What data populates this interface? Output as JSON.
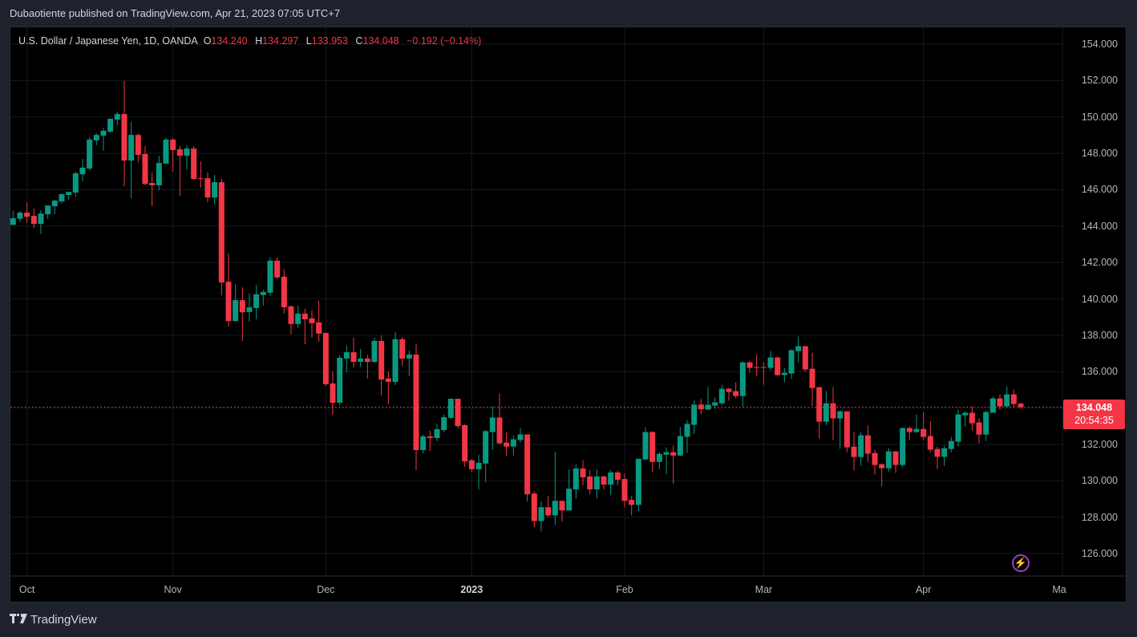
{
  "header": {
    "published": "Dubaotiente published on TradingView.com, Apr 21, 2023 07:05 UTC+7"
  },
  "legend": {
    "symbol": "U.S. Dollar / Japanese Yen, 1D, OANDA",
    "o_label": "O",
    "o": "134.240",
    "h_label": "H",
    "h": "134.297",
    "l_label": "L",
    "l": "133.953",
    "c_label": "C",
    "c": "134.048",
    "change": "−0.192 (−0.14%)"
  },
  "last_price": {
    "price": "134.048",
    "countdown": "20:54:35"
  },
  "footer": {
    "brand": "TradingView",
    "logo": "TV"
  },
  "colors": {
    "up": "#089981",
    "down": "#f23645"
  },
  "chart_data": {
    "type": "candlestick",
    "title": "U.S. Dollar / Japanese Yen, 1D, OANDA",
    "ylim": [
      125,
      155
    ],
    "y_ticks": [
      "154.000",
      "152.000",
      "150.000",
      "148.000",
      "146.000",
      "144.000",
      "142.000",
      "140.000",
      "138.000",
      "136.000",
      "134.000",
      "132.000",
      "130.000",
      "128.000",
      "126.000"
    ],
    "y_tick_values": [
      154,
      152,
      150,
      148,
      146,
      144,
      142,
      140,
      138,
      136,
      134,
      132,
      130,
      128,
      126
    ],
    "x_ticks": [
      {
        "label": "Oct",
        "bar": 2
      },
      {
        "label": "Nov",
        "bar": 23
      },
      {
        "label": "Dec",
        "bar": 45
      },
      {
        "label": "2023",
        "bar": 66,
        "bold": true
      },
      {
        "label": "Feb",
        "bar": 88
      },
      {
        "label": "Mar",
        "bar": 108
      },
      {
        "label": "Apr",
        "bar": 131
      },
      {
        "label": "Ma",
        "bar": 151
      }
    ],
    "ohlc": [
      [
        144.07,
        144.82,
        144.05,
        144.43
      ],
      [
        144.4,
        144.82,
        144.22,
        144.74
      ],
      [
        144.74,
        145.31,
        144.18,
        144.51
      ],
      [
        144.56,
        144.96,
        143.9,
        144.12
      ],
      [
        144.12,
        144.87,
        143.56,
        144.69
      ],
      [
        144.65,
        145.13,
        144.4,
        145.13
      ],
      [
        145.09,
        145.44,
        144.66,
        145.4
      ],
      [
        145.35,
        145.79,
        145.24,
        145.75
      ],
      [
        145.71,
        145.88,
        145.46,
        145.88
      ],
      [
        145.84,
        146.99,
        145.62,
        146.9
      ],
      [
        146.85,
        147.69,
        146.46,
        147.21
      ],
      [
        147.16,
        148.88,
        147.07,
        148.75
      ],
      [
        148.71,
        149.1,
        148.44,
        149.01
      ],
      [
        148.97,
        149.41,
        148.13,
        149.24
      ],
      [
        149.19,
        149.9,
        149.1,
        149.9
      ],
      [
        149.85,
        150.29,
        149.54,
        150.16
      ],
      [
        150.16,
        151.97,
        146.19,
        147.6
      ],
      [
        147.6,
        149.72,
        145.53,
        149.01
      ],
      [
        149.01,
        149.1,
        147.51,
        147.91
      ],
      [
        147.96,
        148.4,
        146.24,
        146.32
      ],
      [
        146.37,
        146.94,
        145.09,
        146.24
      ],
      [
        146.24,
        147.87,
        145.97,
        147.47
      ],
      [
        147.43,
        148.84,
        147.43,
        148.75
      ],
      [
        148.75,
        148.84,
        146.99,
        148.18
      ],
      [
        148.22,
        148.4,
        145.66,
        147.87
      ],
      [
        147.87,
        148.44,
        147.12,
        148.26
      ],
      [
        148.26,
        148.4,
        146.54,
        146.59
      ],
      [
        146.63,
        147.56,
        146.1,
        146.59
      ],
      [
        146.63,
        146.94,
        145.31,
        145.57
      ],
      [
        145.57,
        146.81,
        145.18,
        146.41
      ],
      [
        146.41,
        146.59,
        140.19,
        140.9
      ],
      [
        140.94,
        142.49,
        138.47,
        138.78
      ],
      [
        138.78,
        140.81,
        138.78,
        139.93
      ],
      [
        139.93,
        140.63,
        137.68,
        139.26
      ],
      [
        139.28,
        140.29,
        138.75,
        139.54
      ],
      [
        139.5,
        140.78,
        138.88,
        140.25
      ],
      [
        140.21,
        140.51,
        139.63,
        140.38
      ],
      [
        140.34,
        142.28,
        140.16,
        142.1
      ],
      [
        142.1,
        142.28,
        141.09,
        141.18
      ],
      [
        141.22,
        141.62,
        139.19,
        139.54
      ],
      [
        139.59,
        139.63,
        138.04,
        138.62
      ],
      [
        138.62,
        139.63,
        138.4,
        139.19
      ],
      [
        139.19,
        139.46,
        137.51,
        138.88
      ],
      [
        138.93,
        139.37,
        137.87,
        138.66
      ],
      [
        138.71,
        139.9,
        137.65,
        138.09
      ],
      [
        138.13,
        138.13,
        135.22,
        135.31
      ],
      [
        135.35,
        136.01,
        133.63,
        134.29
      ],
      [
        134.29,
        136.9,
        134.16,
        136.76
      ],
      [
        136.72,
        137.43,
        135.97,
        137.07
      ],
      [
        137.07,
        137.87,
        136.22,
        136.54
      ],
      [
        136.54,
        137.25,
        136.26,
        136.72
      ],
      [
        136.72,
        136.94,
        135.62,
        136.54
      ],
      [
        136.54,
        137.87,
        136.49,
        137.69
      ],
      [
        137.69,
        138.0,
        134.69,
        135.57
      ],
      [
        135.62,
        136.01,
        134.21,
        135.44
      ],
      [
        135.44,
        138.18,
        135.26,
        137.78
      ],
      [
        137.78,
        137.91,
        136.32,
        136.72
      ],
      [
        136.72,
        137.16,
        135.75,
        136.94
      ],
      [
        136.94,
        137.51,
        130.59,
        131.69
      ],
      [
        131.69,
        132.53,
        131.51,
        132.44
      ],
      [
        132.44,
        132.75,
        131.65,
        132.35
      ],
      [
        132.35,
        133.15,
        132.18,
        132.84
      ],
      [
        132.79,
        133.63,
        132.66,
        133.5
      ],
      [
        133.46,
        134.51,
        133.41,
        134.51
      ],
      [
        134.51,
        134.51,
        132.88,
        133.01
      ],
      [
        133.06,
        133.1,
        130.76,
        131.07
      ],
      [
        131.13,
        131.2,
        130.5,
        130.64
      ],
      [
        130.64,
        131.44,
        129.53,
        130.99
      ],
      [
        130.95,
        132.77,
        129.93,
        132.73
      ],
      [
        132.68,
        134.1,
        131.7,
        133.48
      ],
      [
        133.48,
        134.81,
        132.01,
        132.06
      ],
      [
        132.1,
        132.68,
        131.35,
        131.88
      ],
      [
        131.88,
        132.5,
        131.39,
        132.28
      ],
      [
        132.24,
        132.9,
        132.1,
        132.55
      ],
      [
        132.55,
        132.55,
        128.86,
        129.26
      ],
      [
        129.3,
        129.44,
        127.44,
        127.79
      ],
      [
        127.79,
        128.86,
        127.22,
        128.55
      ],
      [
        128.55,
        129.17,
        128.01,
        128.1
      ],
      [
        128.1,
        131.61,
        127.57,
        128.9
      ],
      [
        128.9,
        128.9,
        127.75,
        128.37
      ],
      [
        128.37,
        130.64,
        128.37,
        129.57
      ],
      [
        129.53,
        130.9,
        129.04,
        130.68
      ],
      [
        130.68,
        131.13,
        129.75,
        130.19
      ],
      [
        130.24,
        130.59,
        129.26,
        129.53
      ],
      [
        129.53,
        130.64,
        129.04,
        130.24
      ],
      [
        130.24,
        130.28,
        129.53,
        129.79
      ],
      [
        129.79,
        130.59,
        129.21,
        130.46
      ],
      [
        130.46,
        130.55,
        129.75,
        130.06
      ],
      [
        130.1,
        130.41,
        128.55,
        128.9
      ],
      [
        128.95,
        129.17,
        128.1,
        128.68
      ],
      [
        128.68,
        131.21,
        128.33,
        131.21
      ],
      [
        131.17,
        132.95,
        131.17,
        132.68
      ],
      [
        132.68,
        132.73,
        130.5,
        131.04
      ],
      [
        131.04,
        131.57,
        130.64,
        131.48
      ],
      [
        131.44,
        131.84,
        130.37,
        131.57
      ],
      [
        131.57,
        131.93,
        129.84,
        131.39
      ],
      [
        131.39,
        132.95,
        131.35,
        132.46
      ],
      [
        132.42,
        133.35,
        131.53,
        133.13
      ],
      [
        133.08,
        134.41,
        132.59,
        134.19
      ],
      [
        134.19,
        134.5,
        133.66,
        133.93
      ],
      [
        133.91,
        135.15,
        133.91,
        134.18
      ],
      [
        134.13,
        134.57,
        133.96,
        134.31
      ],
      [
        134.26,
        135.28,
        134.18,
        135.06
      ],
      [
        135.06,
        135.1,
        134.4,
        134.88
      ],
      [
        134.93,
        135.41,
        134.53,
        134.66
      ],
      [
        134.66,
        136.56,
        134.09,
        136.51
      ],
      [
        136.51,
        136.6,
        135.94,
        136.21
      ],
      [
        136.25,
        136.96,
        135.76,
        136.21
      ],
      [
        136.25,
        136.51,
        135.28,
        136.21
      ],
      [
        136.21,
        137.13,
        136.07,
        136.78
      ],
      [
        136.78,
        136.82,
        135.76,
        135.81
      ],
      [
        135.81,
        136.21,
        135.41,
        135.94
      ],
      [
        135.9,
        137.22,
        135.59,
        137.18
      ],
      [
        137.13,
        137.93,
        136.51,
        137.4
      ],
      [
        137.4,
        137.4,
        135.99,
        136.12
      ],
      [
        136.16,
        137.04,
        134.13,
        135.1
      ],
      [
        135.15,
        135.15,
        132.32,
        133.25
      ],
      [
        133.25,
        134.93,
        133.07,
        134.26
      ],
      [
        134.26,
        135.15,
        132.24,
        133.43
      ],
      [
        133.43,
        133.87,
        131.75,
        133.82
      ],
      [
        133.82,
        133.82,
        131.57,
        131.84
      ],
      [
        131.88,
        132.68,
        130.56,
        131.31
      ],
      [
        131.31,
        132.68,
        130.81,
        132.5
      ],
      [
        132.5,
        133.03,
        131.04,
        131.49
      ],
      [
        131.53,
        131.71,
        130.34,
        130.87
      ],
      [
        130.91,
        130.96,
        129.68,
        130.69
      ],
      [
        130.69,
        131.79,
        130.51,
        131.62
      ],
      [
        131.62,
        131.62,
        130.43,
        130.87
      ],
      [
        130.87,
        132.94,
        130.78,
        132.9
      ],
      [
        132.9,
        132.99,
        132.24,
        132.68
      ],
      [
        132.68,
        133.65,
        132.63,
        132.85
      ],
      [
        132.85,
        133.78,
        132.24,
        132.41
      ],
      [
        132.46,
        133.28,
        131.57,
        131.71
      ],
      [
        131.75,
        131.87,
        130.65,
        131.32
      ],
      [
        131.32,
        131.93,
        130.82,
        131.79
      ],
      [
        131.75,
        132.41,
        131.57,
        132.19
      ],
      [
        132.15,
        133.91,
        131.88,
        133.65
      ],
      [
        133.6,
        133.82,
        132.99,
        133.74
      ],
      [
        133.74,
        134.09,
        132.76,
        133.16
      ],
      [
        133.21,
        133.43,
        132.06,
        132.54
      ],
      [
        132.54,
        133.87,
        132.19,
        133.78
      ],
      [
        133.74,
        134.62,
        133.74,
        134.53
      ],
      [
        134.53,
        134.75,
        133.91,
        134.09
      ],
      [
        134.09,
        135.19,
        134.0,
        134.75
      ],
      [
        134.75,
        135.01,
        134.04,
        134.22
      ],
      [
        134.24,
        134.297,
        133.953,
        134.048
      ]
    ],
    "last_close": 134.048,
    "grid": true
  }
}
